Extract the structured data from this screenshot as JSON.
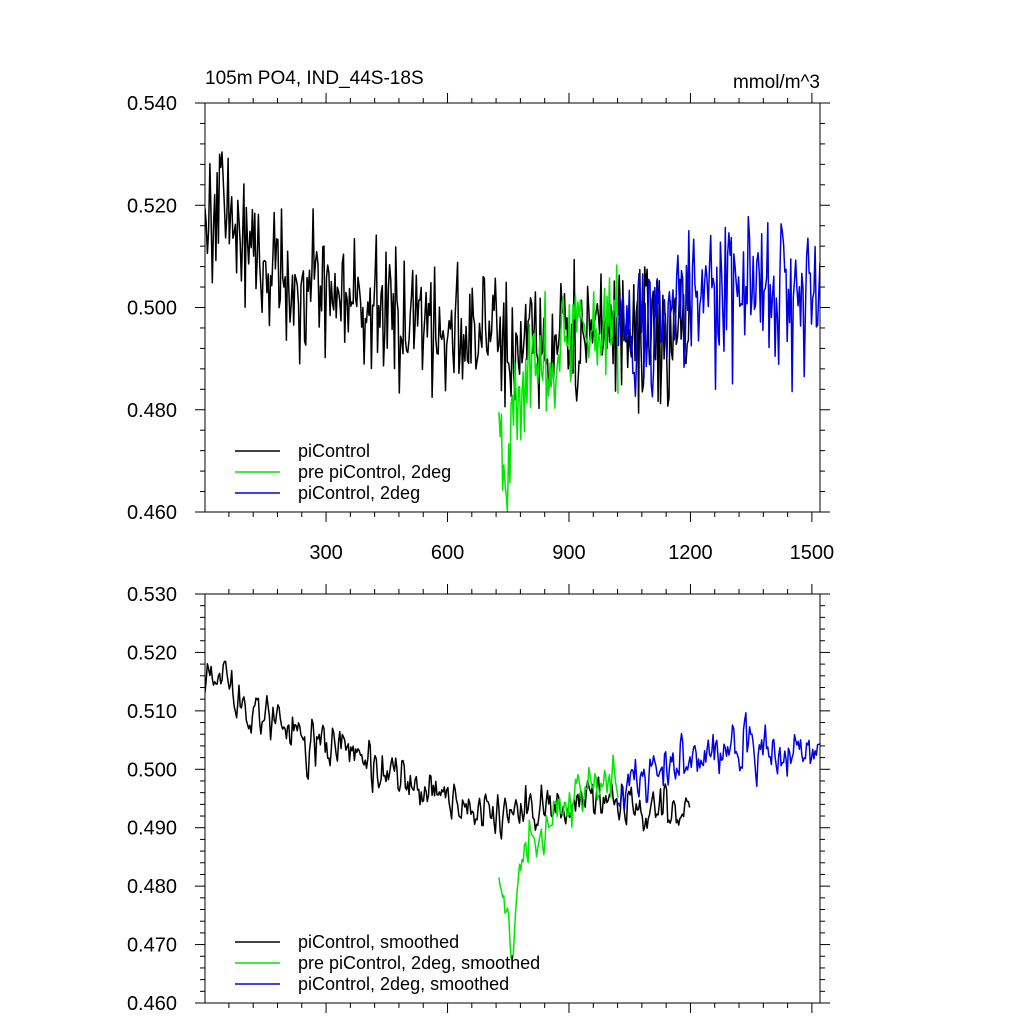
{
  "figure": {
    "title_left": "105m PO4, IND_44S-18S",
    "title_right": "mmol/m^3"
  },
  "chart_data": [
    {
      "type": "line",
      "title": "105m PO4, IND_44S-18S",
      "units": "mmol/m^3",
      "xlim": [
        1,
        1520
      ],
      "ylim": [
        0.46,
        0.54
      ],
      "xticks": [
        300,
        600,
        900,
        1200,
        1500
      ],
      "xtick_labels": [
        "300",
        "600",
        "900",
        "1200",
        "1500"
      ],
      "yticks": [
        0.46,
        0.48,
        0.5,
        0.52,
        0.54
      ],
      "ytick_labels": [
        "0.460",
        "0.480",
        "0.500",
        "0.520",
        "0.540"
      ],
      "series": [
        {
          "name": "piControl",
          "color": "#000000",
          "x_range": [
            1,
            1200
          ],
          "key_points": [
            [
              1,
              0.515
            ],
            [
              35,
              0.522
            ],
            [
              60,
              0.519
            ],
            [
              100,
              0.512
            ],
            [
              200,
              0.506
            ],
            [
              300,
              0.503
            ],
            [
              400,
              0.5
            ],
            [
              500,
              0.498
            ],
            [
              600,
              0.496
            ],
            [
              700,
              0.494
            ],
            [
              800,
              0.493
            ],
            [
              900,
              0.494
            ],
            [
              1000,
              0.495
            ],
            [
              1100,
              0.494
            ],
            [
              1200,
              0.494
            ]
          ],
          "noise": 0.0065
        },
        {
          "name": "pre piControl, 2deg",
          "color": "#00e600",
          "x_range": [
            727,
            1022
          ],
          "key_points": [
            [
              727,
              0.479
            ],
            [
              745,
              0.471
            ],
            [
              760,
              0.476
            ],
            [
              785,
              0.486
            ],
            [
              820,
              0.488
            ],
            [
              850,
              0.49
            ],
            [
              900,
              0.494
            ],
            [
              950,
              0.496
            ],
            [
              1000,
              0.498
            ],
            [
              1022,
              0.497
            ]
          ],
          "noise": 0.006
        },
        {
          "name": "piControl, 2deg",
          "color": "#0000e6",
          "x_range": [
            1022,
            1520
          ],
          "key_points": [
            [
              1022,
              0.496
            ],
            [
              1100,
              0.497
            ],
            [
              1200,
              0.5
            ],
            [
              1300,
              0.502
            ],
            [
              1400,
              0.503
            ],
            [
              1520,
              0.504
            ]
          ],
          "noise": 0.007
        }
      ],
      "legend": [
        "piControl",
        "pre piControl, 2deg",
        "piControl, 2deg"
      ],
      "legend_position": "lower-left"
    },
    {
      "type": "line",
      "title": "",
      "xlim": [
        1,
        1520
      ],
      "ylim": [
        0.46,
        0.53
      ],
      "xticks": [
        300,
        600,
        900,
        1200,
        1500
      ],
      "xtick_labels": [],
      "yticks": [
        0.46,
        0.47,
        0.48,
        0.49,
        0.5,
        0.51,
        0.52,
        0.53
      ],
      "ytick_labels": [
        "0.460",
        "0.470",
        "0.480",
        "0.490",
        "0.500",
        "0.510",
        "0.520",
        "0.530"
      ],
      "series": [
        {
          "name": "piControl, smoothed",
          "color": "#000000",
          "x_range": [
            1,
            1200
          ],
          "key_points": [
            [
              1,
              0.516
            ],
            [
              40,
              0.518
            ],
            [
              80,
              0.512
            ],
            [
              150,
              0.509
            ],
            [
              250,
              0.505
            ],
            [
              350,
              0.503
            ],
            [
              450,
              0.499
            ],
            [
              550,
              0.496
            ],
            [
              650,
              0.494
            ],
            [
              750,
              0.492
            ],
            [
              850,
              0.493
            ],
            [
              950,
              0.494
            ],
            [
              1050,
              0.494
            ],
            [
              1150,
              0.493
            ],
            [
              1200,
              0.492
            ]
          ],
          "noise": 0.003
        },
        {
          "name": "pre piControl, 2deg, smoothed",
          "color": "#00e600",
          "x_range": [
            727,
            1022
          ],
          "key_points": [
            [
              727,
              0.482
            ],
            [
              745,
              0.473
            ],
            [
              758,
              0.47
            ],
            [
              775,
              0.484
            ],
            [
              800,
              0.489
            ],
            [
              830,
              0.488
            ],
            [
              870,
              0.493
            ],
            [
              920,
              0.496
            ],
            [
              980,
              0.498
            ],
            [
              1022,
              0.497
            ]
          ],
          "noise": 0.003
        },
        {
          "name": "piControl, 2deg, smoothed",
          "color": "#0000e6",
          "x_range": [
            1022,
            1520
          ],
          "key_points": [
            [
              1022,
              0.496
            ],
            [
              1100,
              0.499
            ],
            [
              1200,
              0.501
            ],
            [
              1300,
              0.504
            ],
            [
              1400,
              0.502
            ],
            [
              1520,
              0.505
            ]
          ],
          "noise": 0.0035
        }
      ],
      "legend": [
        "piControl, smoothed",
        "pre piControl, 2deg, smoothed",
        "piControl, 2deg, smoothed"
      ],
      "legend_position": "lower-left"
    }
  ]
}
